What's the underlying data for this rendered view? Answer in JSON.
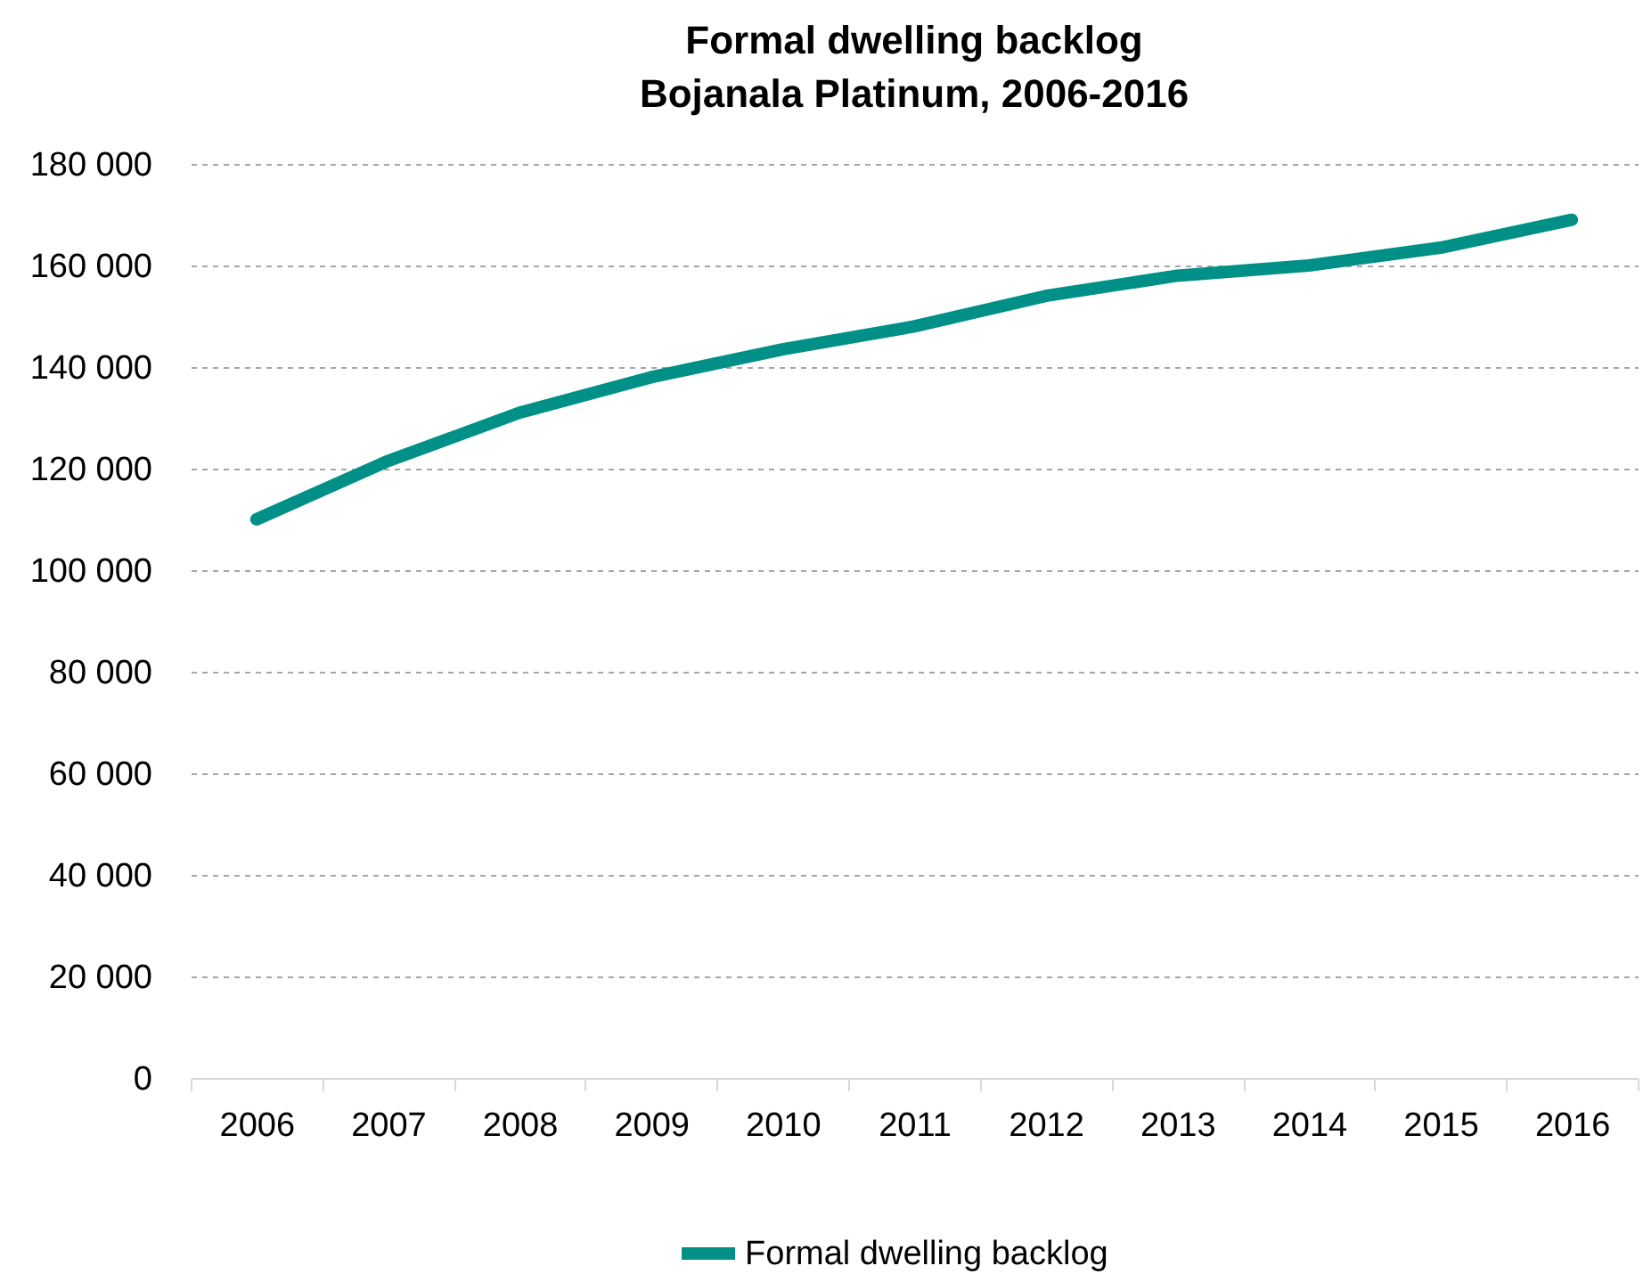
{
  "chart_data": {
    "type": "line",
    "title": "Formal dwelling backlog\nBojanala Platinum, 2006-2016",
    "categories": [
      "2006",
      "2007",
      "2008",
      "2009",
      "2010",
      "2011",
      "2012",
      "2013",
      "2014",
      "2015",
      "2016"
    ],
    "series": [
      {
        "name": "Formal dwelling backlog",
        "color": "#009088",
        "values": [
          110000,
          121500,
          131000,
          138000,
          143500,
          148000,
          154000,
          158000,
          160000,
          163500,
          169000
        ]
      }
    ],
    "ylim": [
      0,
      180000
    ],
    "yticks": [
      {
        "value": 0,
        "label": "0"
      },
      {
        "value": 20000,
        "label": "20 000"
      },
      {
        "value": 40000,
        "label": "40 000"
      },
      {
        "value": 60000,
        "label": "60 000"
      },
      {
        "value": 80000,
        "label": "80 000"
      },
      {
        "value": 100000,
        "label": "100 000"
      },
      {
        "value": 120000,
        "label": "120 000"
      },
      {
        "value": 140000,
        "label": "140 000"
      },
      {
        "value": 160000,
        "label": "160 000"
      },
      {
        "value": 180000,
        "label": "180 000"
      }
    ],
    "grid": "y",
    "legend": "bottom",
    "line_style": "solid"
  }
}
